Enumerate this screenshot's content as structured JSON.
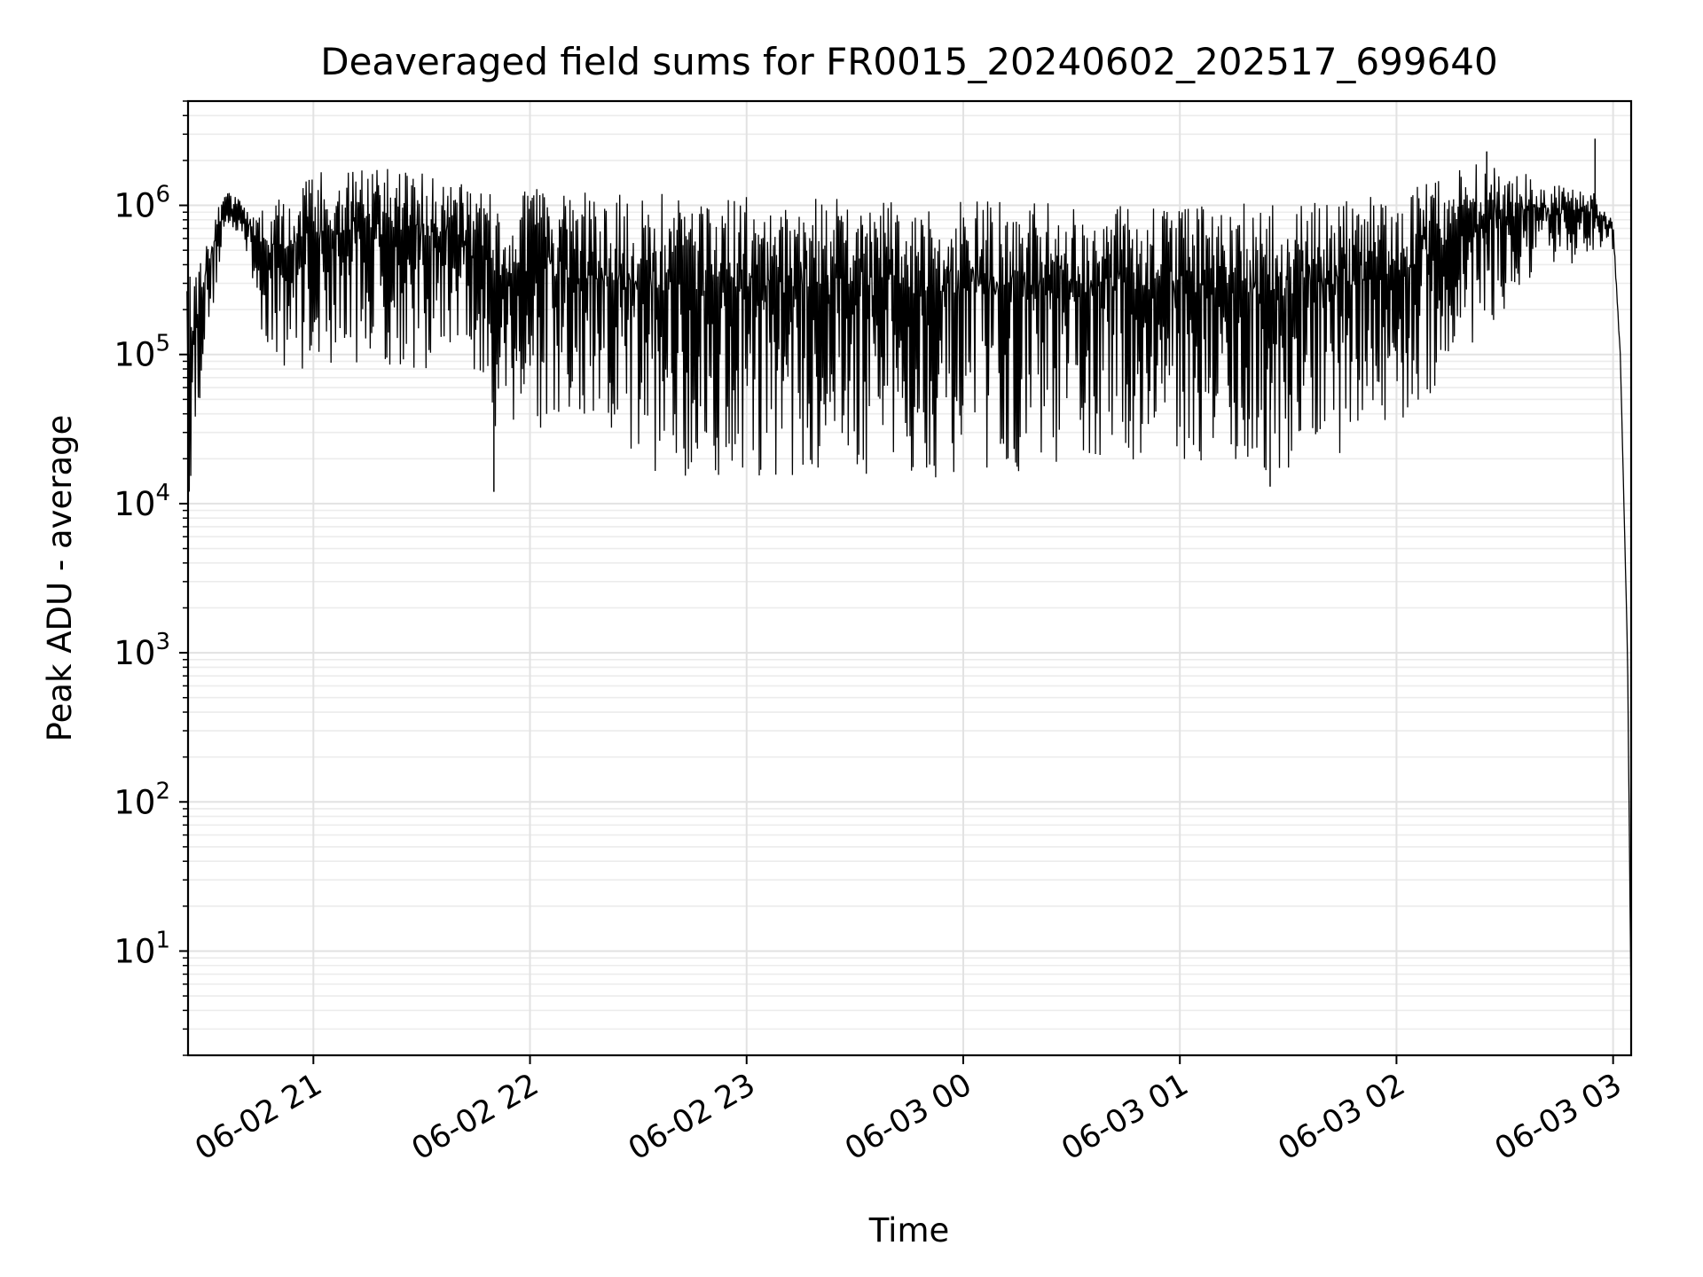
{
  "chart_data": {
    "type": "line",
    "title": "Deaveraged field sums for FR0015_20240602_202517_699640",
    "xlabel": "Time",
    "ylabel": "Peak ADU - average",
    "x_range": [
      "2024-06-02 20:25:17",
      "2024-06-03 03:05:00"
    ],
    "ylim": [
      2,
      5000000
    ],
    "y_scale": "log",
    "grid": true,
    "x_ticks": [
      {
        "label": "06-02 21",
        "time": "2024-06-02 21:00"
      },
      {
        "label": "06-02 22",
        "time": "2024-06-02 22:00"
      },
      {
        "label": "06-02 23",
        "time": "2024-06-02 23:00"
      },
      {
        "label": "06-03 00",
        "time": "2024-06-03 00:00"
      },
      {
        "label": "06-03 01",
        "time": "2024-06-03 01:00"
      },
      {
        "label": "06-03 02",
        "time": "2024-06-03 02:00"
      },
      {
        "label": "06-03 03",
        "time": "2024-06-03 03:00"
      }
    ],
    "y_ticks": [
      {
        "base": "10",
        "exp": "1",
        "value": 10
      },
      {
        "base": "10",
        "exp": "2",
        "value": 100
      },
      {
        "base": "10",
        "exp": "3",
        "value": 1000
      },
      {
        "base": "10",
        "exp": "4",
        "value": 10000
      },
      {
        "base": "10",
        "exp": "5",
        "value": 100000
      },
      {
        "base": "10",
        "exp": "6",
        "value": 1000000
      }
    ],
    "series": [
      {
        "color": "#000000",
        "envelope": [
          {
            "t": "2024-06-02 20:25",
            "upper": 300000,
            "lower": 8000
          },
          {
            "t": "2024-06-02 20:30",
            "upper": 600000,
            "lower": 100000
          },
          {
            "t": "2024-06-02 20:35",
            "upper": 1300000,
            "lower": 500000
          },
          {
            "t": "2024-06-02 20:40",
            "upper": 1100000,
            "lower": 700000
          },
          {
            "t": "2024-06-02 20:45",
            "upper": 900000,
            "lower": 150000
          },
          {
            "t": "2024-06-02 20:50",
            "upper": 1100000,
            "lower": 80000
          },
          {
            "t": "2024-06-02 21:00",
            "upper": 1700000,
            "lower": 80000
          },
          {
            "t": "2024-06-02 21:15",
            "upper": 1800000,
            "lower": 90000
          },
          {
            "t": "2024-06-02 21:30",
            "upper": 1700000,
            "lower": 70000
          },
          {
            "t": "2024-06-02 21:40",
            "upper": 1500000,
            "lower": 120000
          },
          {
            "t": "2024-06-02 21:48",
            "upper": 1200000,
            "lower": 30000
          },
          {
            "t": "2024-06-02 22:00",
            "upper": 1300000,
            "lower": 30000
          },
          {
            "t": "2024-06-02 22:20",
            "upper": 1200000,
            "lower": 20000
          },
          {
            "t": "2024-06-02 22:40",
            "upper": 1200000,
            "lower": 15000
          },
          {
            "t": "2024-06-02 23:00",
            "upper": 1150000,
            "lower": 15000
          },
          {
            "t": "2024-06-02 23:30",
            "upper": 1100000,
            "lower": 15000
          },
          {
            "t": "2024-06-03 00:00",
            "upper": 1100000,
            "lower": 15000
          },
          {
            "t": "2024-06-03 00:30",
            "upper": 1050000,
            "lower": 18000
          },
          {
            "t": "2024-06-03 01:00",
            "upper": 1000000,
            "lower": 20000
          },
          {
            "t": "2024-06-03 01:20",
            "upper": 1050000,
            "lower": 15000
          },
          {
            "t": "2024-06-03 01:40",
            "upper": 1050000,
            "lower": 20000
          },
          {
            "t": "2024-06-03 02:00",
            "upper": 1200000,
            "lower": 30000
          },
          {
            "t": "2024-06-03 02:10",
            "upper": 1500000,
            "lower": 50000
          },
          {
            "t": "2024-06-03 02:25",
            "upper": 2000000,
            "lower": 150000
          },
          {
            "t": "2024-06-03 02:40",
            "upper": 1500000,
            "lower": 300000
          },
          {
            "t": "2024-06-03 02:55",
            "upper": 1200000,
            "lower": 500000
          },
          {
            "t": "2024-06-03 03:00",
            "upper": 800000,
            "lower": 500000
          },
          {
            "t": "2024-06-03 03:02",
            "upper": 100000,
            "lower": 100000
          },
          {
            "t": "2024-06-03 03:04",
            "upper": 1000,
            "lower": 1000
          },
          {
            "t": "2024-06-03 03:05",
            "upper": 4,
            "lower": 4
          }
        ],
        "spikes": [
          {
            "t": "2024-06-02 21:50",
            "value": 12000
          },
          {
            "t": "2024-06-03 01:25",
            "value": 13000
          },
          {
            "t": "2024-06-03 02:55",
            "value": 2800000
          },
          {
            "t": "2024-06-03 02:25",
            "value": 2300000
          }
        ]
      }
    ]
  }
}
